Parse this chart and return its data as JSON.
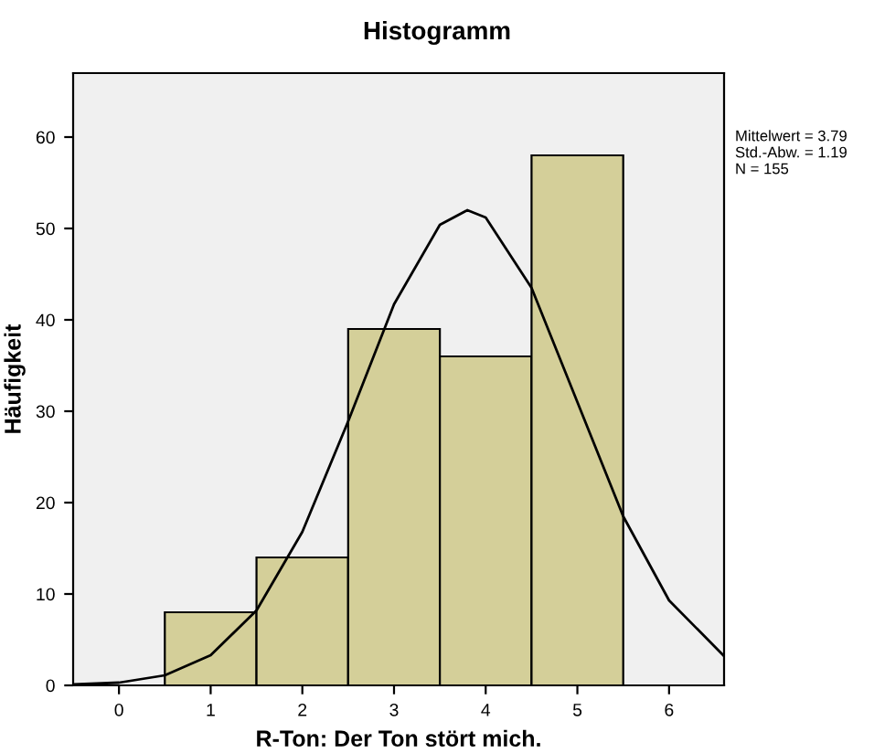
{
  "chart_data": {
    "type": "histogram",
    "title": "Histogramm",
    "xlabel": "R-Ton: Der Ton stört mich.",
    "ylabel": "Häufigkeit",
    "bins": [
      0.5,
      1.5,
      2.5,
      3.5,
      4.5,
      5.5
    ],
    "values": [
      8,
      14,
      39,
      36,
      58
    ],
    "color": "#d4cf99",
    "series": [
      {
        "type": "line",
        "color": "#000000",
        "x": [
          -0.5,
          0,
          0.5,
          1,
          1.5,
          2,
          2.5,
          3,
          3.5,
          3.8,
          4,
          4.5,
          5,
          5.5,
          6,
          6.6
        ],
        "values": [
          0.1,
          0.3,
          1.1,
          3.3,
          8.2,
          16.8,
          28.9,
          41.7,
          50.4,
          52,
          51.2,
          43.5,
          31,
          18.5,
          9.3,
          3.2
        ]
      }
    ],
    "xlim": [
      -0.5,
      6.6
    ],
    "ylim": [
      0,
      67
    ],
    "xticks": [
      0,
      1,
      2,
      3,
      4,
      5,
      6
    ],
    "yticks": [
      0,
      10,
      20,
      30,
      40,
      50,
      60
    ],
    "grid": false,
    "annotations": [
      "Mittelwert = 3.79",
      "Std.-Abw. = 1.19",
      "N = 155"
    ]
  }
}
